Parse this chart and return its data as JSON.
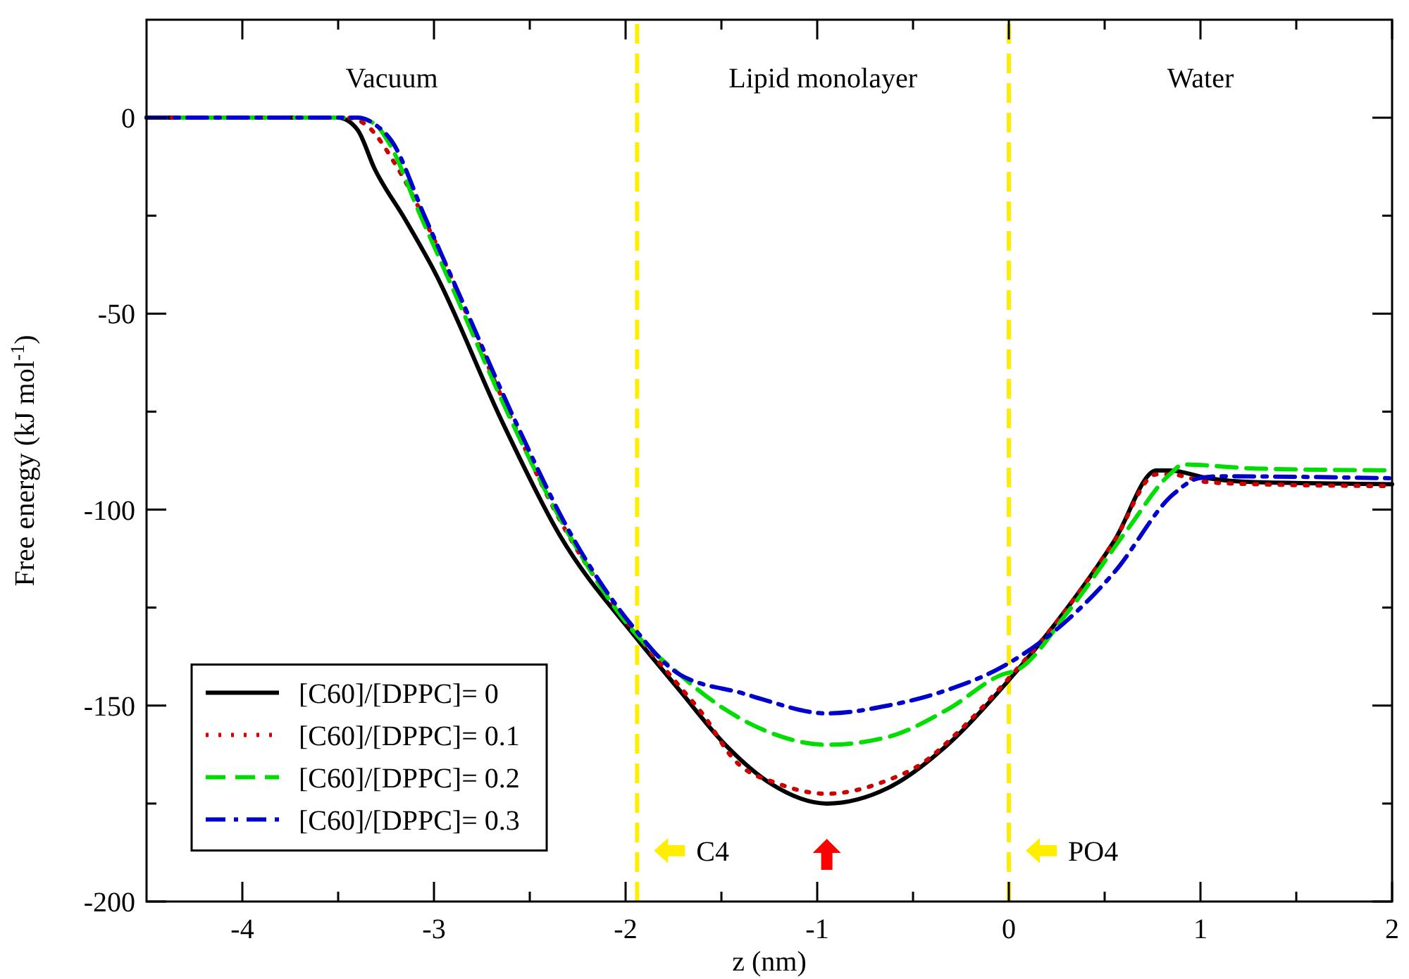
{
  "chart_data": {
    "type": "line",
    "xlabel": "z (nm)",
    "ylabel": "Free energy (kJ mol$^{-1}$)",
    "xlim": [
      -4.5,
      2
    ],
    "xticks": [
      -4,
      {
        "value": -3.5,
        "label": null
      },
      -3,
      {
        "value": -2.5,
        "label": null
      },
      -2,
      {
        "value": -1.5,
        "label": null
      },
      -1,
      {
        "value": -0.5,
        "label": null
      },
      0,
      {
        "value": 0.5,
        "label": null
      },
      1,
      {
        "value": 1.5,
        "label": null
      },
      2
    ],
    "ylim": [
      -200,
      25
    ],
    "yticks": [
      -200,
      {
        "value": -175,
        "label": null
      },
      -150,
      {
        "value": -125,
        "label": null
      },
      -100,
      {
        "value": -75,
        "label": null
      },
      -50,
      {
        "value": -25,
        "label": null
      },
      0
    ],
    "grid": false,
    "legend": "bottom left",
    "series": [
      {
        "name": "[C60]/[DPPC]= 0",
        "color": "#000000",
        "line_style": "solid",
        "x": [
          -4.5,
          -3.5,
          -3.4,
          -3.31,
          -3.15,
          -3.0,
          -2.64,
          -2.35,
          -1.94,
          -1.72,
          -1.48,
          -1.24,
          -0.95,
          -0.63,
          -0.32,
          0,
          0.26,
          0.55,
          0.77,
          0.84,
          1.04,
          1.28,
          2
        ],
        "values": [
          0,
          0,
          -3,
          -13,
          -26,
          -39,
          -78,
          -106,
          -133,
          -146,
          -160,
          -170,
          -175,
          -171,
          -160,
          -143.5,
          -128,
          -108,
          -90,
          -90,
          -92,
          -93,
          -93.5
        ]
      },
      {
        "name": "[C60]/[DPPC]= 0.1",
        "color": "#cc0000",
        "line_style": "dotted",
        "x": [
          -4.5,
          -3.45,
          -3.35,
          -3.2,
          -3.0,
          -2.64,
          -2.35,
          -1.94,
          -1.72,
          -1.6,
          -1.43,
          -1.2,
          -0.95,
          -0.63,
          -0.46,
          -0.27,
          0,
          0.26,
          0.55,
          0.77,
          0.84,
          1.04,
          1.28,
          2
        ],
        "values": [
          0,
          0,
          -2,
          -12,
          -31,
          -72,
          -102,
          -132,
          -145,
          -152,
          -164,
          -170,
          -172.5,
          -169,
          -165,
          -157,
          -143,
          -128,
          -108,
          -91,
          -91,
          -93,
          -93.5,
          -94
        ]
      },
      {
        "name": "[C60]/[DPPC]= 0.2",
        "color": "#00dd00",
        "line_style": "dashed",
        "x": [
          -4.5,
          -3.4,
          -3.3,
          -3.24,
          -3.07,
          -2.88,
          -2.59,
          -2.3,
          -1.96,
          -1.72,
          -1.48,
          -1.24,
          -0.95,
          -0.63,
          -0.32,
          -0.03,
          0.04,
          0.31,
          0.62,
          0.84,
          0.91,
          1.28,
          2
        ],
        "values": [
          0,
          0,
          -2,
          -6,
          -25,
          -46,
          -78,
          -106,
          -131,
          -142,
          -151,
          -157,
          -160,
          -158,
          -151,
          -142,
          -141,
          -126,
          -105,
          -91,
          -88.5,
          -89.5,
          -90
        ]
      },
      {
        "name": "[C60]/[DPPC]= 0.3",
        "color": "#0000cc",
        "line_style": "dashdot",
        "x": [
          -4.5,
          -3.4,
          -3.3,
          -3.22,
          -3.05,
          -2.86,
          -2.57,
          -2.3,
          -1.96,
          -1.72,
          -1.38,
          -1.28,
          -0.95,
          -0.63,
          -0.32,
          -0.03,
          0.31,
          0.55,
          0.86,
          0.99,
          1.1,
          2
        ],
        "values": [
          0,
          0,
          -2,
          -6,
          -25,
          -46,
          -78,
          -105,
          -130,
          -142,
          -147,
          -148.5,
          -152,
          -150,
          -146,
          -140,
          -128,
          -116,
          -96,
          -92,
          -91.5,
          -92
        ]
      }
    ],
    "ref_lines": [
      {
        "axis": "x",
        "value": -1.94,
        "label": "C4",
        "color": "#ffee00",
        "line_style": "dashed"
      },
      {
        "axis": "x",
        "value": 0,
        "label": "PO4",
        "color": "#ffee00",
        "line_style": "dashed"
      }
    ],
    "annotations": [
      "Vacuum",
      "Lipid monolayer",
      "Water"
    ]
  }
}
